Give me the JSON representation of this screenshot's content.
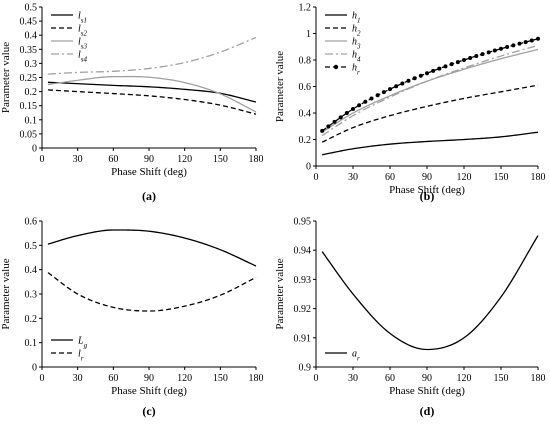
{
  "chart_data": [
    {
      "panel": "(a)",
      "type": "line",
      "xlabel": "Phase Shift (deg)",
      "ylabel": "Parameter value",
      "xlim": [
        0,
        180
      ],
      "ylim": [
        0,
        0.5
      ],
      "xticks": [
        0,
        30,
        60,
        90,
        120,
        150,
        180
      ],
      "yticks": [
        0,
        0.05,
        0.1,
        0.15,
        0.2,
        0.25,
        0.3,
        0.35,
        0.4,
        0.45,
        0.5
      ],
      "xtick_labels": [
        "0",
        "30",
        "60",
        "90",
        "120",
        "150",
        "180"
      ],
      "ytick_labels": [
        "0",
        "0.05",
        "0.1",
        "0.15",
        "0.2",
        "0.25",
        "0.3",
        "0.35",
        "0.4",
        "0.45",
        "0.5"
      ],
      "legend_position": "top-left",
      "series": [
        {
          "name": "l",
          "sub": "s1",
          "style": "solid",
          "color": "#000000",
          "x": [
            5,
            30,
            60,
            90,
            120,
            150,
            180
          ],
          "y": [
            0.233,
            0.228,
            0.222,
            0.217,
            0.208,
            0.194,
            0.163
          ]
        },
        {
          "name": "l",
          "sub": "s2",
          "style": "dashed",
          "color": "#000000",
          "x": [
            5,
            30,
            60,
            90,
            120,
            150,
            180
          ],
          "y": [
            0.206,
            0.2,
            0.193,
            0.185,
            0.172,
            0.152,
            0.12
          ]
        },
        {
          "name": "l",
          "sub": "s3",
          "style": "solid",
          "color": "#a0a0a0",
          "x": [
            5,
            30,
            60,
            90,
            120,
            150,
            180
          ],
          "y": [
            0.225,
            0.24,
            0.253,
            0.251,
            0.232,
            0.192,
            0.128
          ]
        },
        {
          "name": "l",
          "sub": "s4",
          "style": "dashdot",
          "color": "#a0a0a0",
          "x": [
            5,
            30,
            60,
            90,
            120,
            150,
            180
          ],
          "y": [
            0.262,
            0.268,
            0.272,
            0.282,
            0.303,
            0.34,
            0.392
          ]
        }
      ]
    },
    {
      "panel": "(b)",
      "type": "line",
      "xlabel": "Phase Shift (deg)",
      "ylabel": "Parameter value",
      "xlim": [
        0,
        180
      ],
      "ylim": [
        0,
        1.2
      ],
      "xticks": [
        0,
        30,
        60,
        90,
        120,
        150,
        180
      ],
      "yticks": [
        0,
        0.2,
        0.4,
        0.6,
        0.8,
        1,
        1.2
      ],
      "xtick_labels": [
        "0",
        "30",
        "60",
        "90",
        "120",
        "150",
        "180"
      ],
      "ytick_labels": [
        "0",
        "0.2",
        "0.4",
        "0.6",
        "0.8",
        "1",
        "1.2"
      ],
      "legend_position": "top-left",
      "series": [
        {
          "name": "h",
          "sub": "1",
          "style": "solid",
          "color": "#000000",
          "x": [
            5,
            30,
            60,
            90,
            120,
            150,
            180
          ],
          "y": [
            0.085,
            0.13,
            0.165,
            0.185,
            0.2,
            0.22,
            0.255
          ]
        },
        {
          "name": "h",
          "sub": "2",
          "style": "dashed",
          "color": "#000000",
          "x": [
            5,
            30,
            60,
            90,
            120,
            150,
            180
          ],
          "y": [
            0.18,
            0.29,
            0.38,
            0.45,
            0.51,
            0.56,
            0.61
          ]
        },
        {
          "name": "h",
          "sub": "3",
          "style": "solid",
          "color": "#a0a0a0",
          "x": [
            5,
            30,
            60,
            90,
            120,
            150,
            180
          ],
          "y": [
            0.255,
            0.4,
            0.53,
            0.64,
            0.73,
            0.81,
            0.88
          ]
        },
        {
          "name": "h",
          "sub": "4",
          "style": "dashdot",
          "color": "#a0a0a0",
          "x": [
            5,
            30,
            60,
            90,
            120,
            150,
            180
          ],
          "y": [
            0.23,
            0.38,
            0.52,
            0.64,
            0.74,
            0.83,
            0.91
          ]
        },
        {
          "name": "h",
          "sub": "r",
          "style": "dashed-markers",
          "color": "#000000",
          "x": [
            5,
            30,
            60,
            90,
            120,
            150,
            180
          ],
          "y": [
            0.265,
            0.43,
            0.58,
            0.7,
            0.8,
            0.885,
            0.96
          ]
        }
      ]
    },
    {
      "panel": "(c)",
      "type": "line",
      "xlabel": "Phase Shift (deg)",
      "ylabel": "Parameter value",
      "xlim": [
        0,
        180
      ],
      "ylim": [
        0,
        0.6
      ],
      "xticks": [
        0,
        30,
        60,
        90,
        120,
        150,
        180
      ],
      "yticks": [
        0,
        0.1,
        0.2,
        0.3,
        0.4,
        0.5,
        0.6
      ],
      "xtick_labels": [
        "0",
        "30",
        "60",
        "90",
        "120",
        "150",
        "180"
      ],
      "ytick_labels": [
        "0",
        "0.1",
        "0.2",
        "0.3",
        "0.4",
        "0.5",
        "0.6"
      ],
      "legend_position": "bottom-left",
      "series": [
        {
          "name": "L",
          "sub": "g",
          "style": "solid",
          "color": "#000000",
          "x": [
            5,
            30,
            60,
            90,
            120,
            150,
            180
          ],
          "y": [
            0.505,
            0.54,
            0.563,
            0.558,
            0.53,
            0.482,
            0.415
          ]
        },
        {
          "name": "l",
          "sub": "r",
          "style": "dashed",
          "color": "#000000",
          "x": [
            5,
            30,
            60,
            90,
            120,
            150,
            180
          ],
          "y": [
            0.388,
            0.3,
            0.245,
            0.23,
            0.25,
            0.295,
            0.368
          ]
        }
      ]
    },
    {
      "panel": "(d)",
      "type": "line",
      "xlabel": "Phase Shift (deg)",
      "ylabel": "Parameter value",
      "xlim": [
        0,
        180
      ],
      "ylim": [
        0.9,
        0.95
      ],
      "xticks": [
        0,
        30,
        60,
        90,
        120,
        150,
        180
      ],
      "yticks": [
        0.9,
        0.91,
        0.92,
        0.93,
        0.94,
        0.95
      ],
      "xtick_labels": [
        "0",
        "30",
        "60",
        "90",
        "120",
        "150",
        "180"
      ],
      "ytick_labels": [
        "0.9",
        "0.91",
        "0.92",
        "0.93",
        "0.94",
        "0.95"
      ],
      "legend_position": "bottom-left",
      "series": [
        {
          "name": "a",
          "sub": "r",
          "style": "solid",
          "color": "#000000",
          "x": [
            5,
            30,
            60,
            90,
            120,
            150,
            180
          ],
          "y": [
            0.9395,
            0.925,
            0.9115,
            0.906,
            0.91,
            0.924,
            0.945
          ]
        }
      ]
    }
  ]
}
